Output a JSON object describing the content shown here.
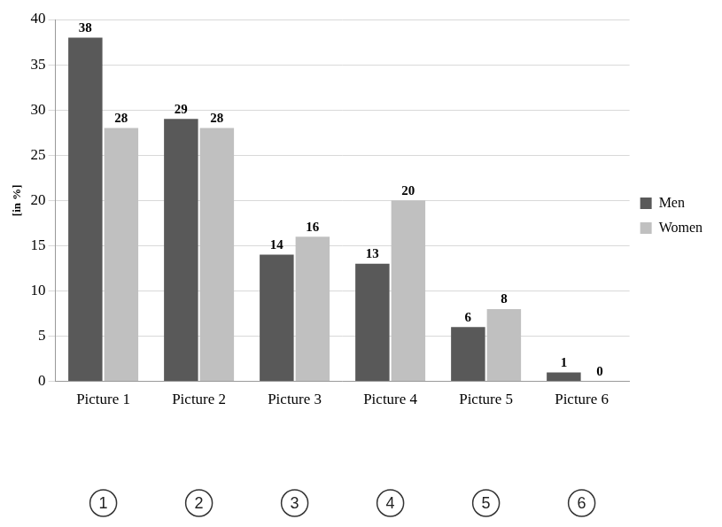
{
  "chart_data": {
    "type": "bar",
    "y_label": "[in %]",
    "categories": [
      "Picture 1",
      "Picture 2",
      "Picture 3",
      "Picture 4",
      "Picture 5",
      "Picture 6"
    ],
    "series": [
      {
        "name": "Men",
        "color": "#595959",
        "values": [
          38,
          29,
          14,
          13,
          6,
          1
        ]
      },
      {
        "name": "Women",
        "color": "#c0c0c0",
        "values": [
          28,
          28,
          16,
          20,
          8,
          0
        ]
      }
    ],
    "annotations": [
      "1",
      "2",
      "3",
      "4",
      "5",
      "6"
    ],
    "ylim": [
      0,
      40
    ],
    "yticks": [
      0,
      5,
      10,
      15,
      20,
      25,
      30,
      35,
      40
    ],
    "grid": true,
    "legend": "right",
    "data_labels": true
  }
}
